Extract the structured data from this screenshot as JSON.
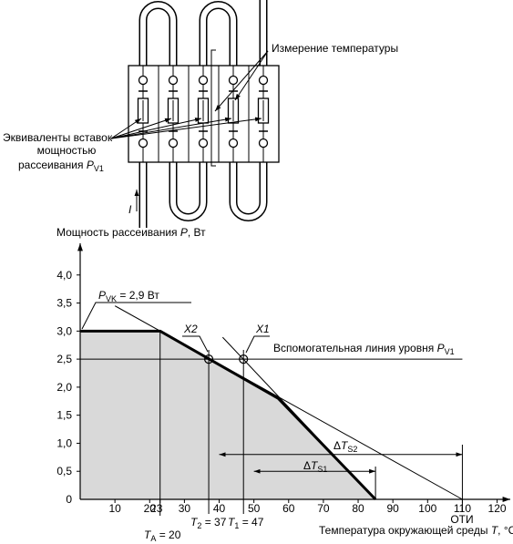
{
  "schematic": {
    "labels": [
      {
        "pre": "Измерение температуры"
      },
      {
        "pre": "Эквиваленты вставок"
      },
      {
        "pre": "мощностью"
      },
      {
        "pre": "рассеивания ",
        "var": "P",
        "sub": "V1"
      },
      {
        "var": "I"
      }
    ]
  },
  "chart_data": {
    "type": "line",
    "y_label": {
      "pre": "Мощность рассеивания ",
      "var": "P",
      "post": ", Вт"
    },
    "x_label": {
      "pre": "Температура окружающей среды ",
      "var": "T",
      "post": ", °C"
    },
    "xlim": [
      0,
      123
    ],
    "ylim": [
      0,
      4.5
    ],
    "xticks": [
      10,
      20,
      {
        "value": 23,
        "label": "23"
      },
      30,
      40,
      50,
      60,
      70,
      80,
      90,
      100,
      110,
      120
    ],
    "yticks": [
      0,
      {
        "value": 0.5,
        "label": "0,5"
      },
      {
        "value": 1,
        "label": "1,0"
      },
      {
        "value": 1.5,
        "label": "1,5"
      },
      {
        "value": 2,
        "label": "2,0"
      },
      {
        "value": 2.5,
        "label": "2,5"
      },
      {
        "value": 3,
        "label": "3,0"
      },
      {
        "value": 3.5,
        "label": "3,5"
      },
      {
        "value": 4,
        "label": "4,0"
      }
    ],
    "series": [
      {
        "x": [
          0,
          23,
          57,
          85
        ],
        "values": [
          3,
          3,
          1.8,
          0
        ],
        "color": "#000000",
        "fill": "#d9d9d9"
      },
      {
        "x": [
          10,
          110
        ],
        "values": [
          3.45,
          0
        ],
        "color": "#000000"
      },
      {
        "x": [
          41,
          85
        ],
        "values": [
          2.89,
          0
        ],
        "color": "#000000"
      },
      {
        "x": [
          0,
          110
        ],
        "values": [
          2.5,
          2.5
        ],
        "color": "#000000"
      }
    ],
    "vlines": [
      23,
      37,
      47,
      85,
      110
    ],
    "markers": [
      {
        "x": 37,
        "y": 2.5
      },
      {
        "x": 47,
        "y": 2.5
      }
    ],
    "dimensions": [
      {
        "from": 40,
        "to": 110,
        "y": 0.8
      },
      {
        "from": 50,
        "to": 85,
        "y": 0.5
      }
    ],
    "annotations": [
      {
        "var": "P",
        "sub": "VK",
        "post": " = 2,9 Вт"
      },
      {
        "var": "X2"
      },
      {
        "var": "X1"
      },
      {
        "pre": "Вспомогательная линия уровня ",
        "var": "P",
        "sub": "V1"
      },
      {
        "pre": "Δ",
        "var": "T",
        "sub": "S2"
      },
      {
        "pre": "Δ",
        "var": "T",
        "sub": "S1"
      },
      {
        "var": "T",
        "sub": "2",
        "post": " = 37"
      },
      {
        "var": "T",
        "sub": "1",
        "post": " = 47"
      },
      {
        "var": "T",
        "sub": "A",
        "post": " = 20"
      },
      {
        "pre": "ОТИ"
      }
    ]
  }
}
